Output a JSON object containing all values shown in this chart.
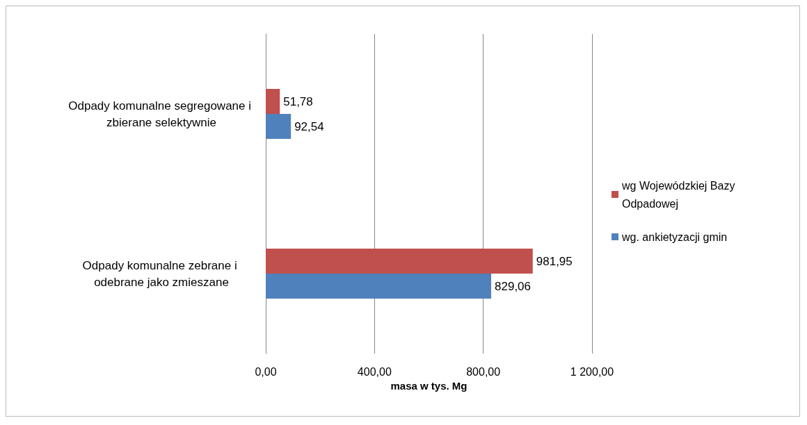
{
  "chart_data": {
    "type": "bar",
    "orientation": "horizontal",
    "xlabel": "masa w tys. Mg",
    "categories": [
      "Odpady komunalne segregowane i zbierane selektywnie",
      "Odpady komunalne zebrane i odebrane jako zmieszane"
    ],
    "series": [
      {
        "name": "wg Wojewódzkiej Bazy Odpadowej",
        "color": "#c0504d",
        "values": [
          51.78,
          981.95
        ],
        "value_labels": [
          "51,78",
          "981,95"
        ]
      },
      {
        "name": "wg. ankietyzacji gmin",
        "color": "#4f81bd",
        "values": [
          92.54,
          829.06
        ],
        "value_labels": [
          "92,54",
          "829,06"
        ]
      }
    ],
    "xlim": [
      0,
      1200
    ],
    "xticks": [
      {
        "value": 0,
        "label": "0,00"
      },
      {
        "value": 400,
        "label": "400,00"
      },
      {
        "value": 800,
        "label": "800,00"
      },
      {
        "value": 1200,
        "label": "1 200,00"
      }
    ],
    "grid": "x",
    "legend": "right"
  }
}
